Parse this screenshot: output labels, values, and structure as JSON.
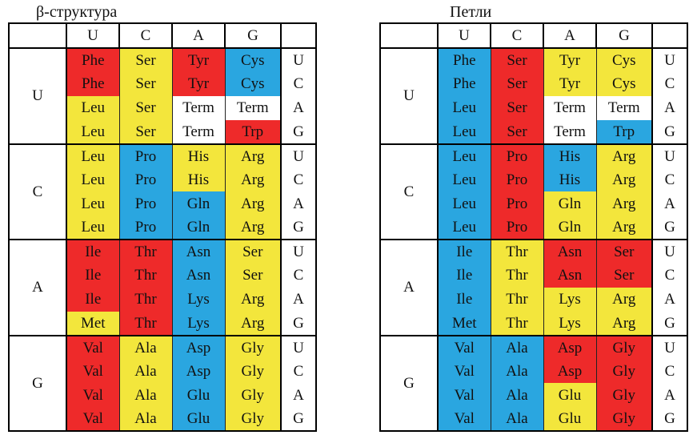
{
  "colors": {
    "R": "#ee2a2a",
    "Y": "#f3e63c",
    "B": "#2aa6e0",
    "W": "#ffffff"
  },
  "header": [
    "U",
    "C",
    "A",
    "G"
  ],
  "third": [
    "U",
    "C",
    "A",
    "G"
  ],
  "panels": [
    {
      "title": "β-структура",
      "groups": [
        {
          "first": "U",
          "rows": [
            [
              [
                "Phe",
                "R"
              ],
              [
                "Ser",
                "Y"
              ],
              [
                "Tyr",
                "R"
              ],
              [
                "Cys",
                "B"
              ]
            ],
            [
              [
                "Phe",
                "R"
              ],
              [
                "Ser",
                "Y"
              ],
              [
                "Tyr",
                "R"
              ],
              [
                "Cys",
                "B"
              ]
            ],
            [
              [
                "Leu",
                "Y"
              ],
              [
                "Ser",
                "Y"
              ],
              [
                "Term",
                "W"
              ],
              [
                "Term",
                "W"
              ]
            ],
            [
              [
                "Leu",
                "Y"
              ],
              [
                "Ser",
                "Y"
              ],
              [
                "Term",
                "W"
              ],
              [
                "Trp",
                "R"
              ]
            ]
          ]
        },
        {
          "first": "C",
          "rows": [
            [
              [
                "Leu",
                "Y"
              ],
              [
                "Pro",
                "B"
              ],
              [
                "His",
                "Y"
              ],
              [
                "Arg",
                "Y"
              ]
            ],
            [
              [
                "Leu",
                "Y"
              ],
              [
                "Pro",
                "B"
              ],
              [
                "His",
                "Y"
              ],
              [
                "Arg",
                "Y"
              ]
            ],
            [
              [
                "Leu",
                "Y"
              ],
              [
                "Pro",
                "B"
              ],
              [
                "Gln",
                "B"
              ],
              [
                "Arg",
                "Y"
              ]
            ],
            [
              [
                "Leu",
                "Y"
              ],
              [
                "Pro",
                "B"
              ],
              [
                "Gln",
                "B"
              ],
              [
                "Arg",
                "Y"
              ]
            ]
          ]
        },
        {
          "first": "A",
          "rows": [
            [
              [
                "Ile",
                "R"
              ],
              [
                "Thr",
                "R"
              ],
              [
                "Asn",
                "B"
              ],
              [
                "Ser",
                "Y"
              ]
            ],
            [
              [
                "Ile",
                "R"
              ],
              [
                "Thr",
                "R"
              ],
              [
                "Asn",
                "B"
              ],
              [
                "Ser",
                "Y"
              ]
            ],
            [
              [
                "Ile",
                "R"
              ],
              [
                "Thr",
                "R"
              ],
              [
                "Lys",
                "B"
              ],
              [
                "Arg",
                "Y"
              ]
            ],
            [
              [
                "Met",
                "Y"
              ],
              [
                "Thr",
                "R"
              ],
              [
                "Lys",
                "B"
              ],
              [
                "Arg",
                "Y"
              ]
            ]
          ]
        },
        {
          "first": "G",
          "rows": [
            [
              [
                "Val",
                "R"
              ],
              [
                "Ala",
                "Y"
              ],
              [
                "Asp",
                "B"
              ],
              [
                "Gly",
                "Y"
              ]
            ],
            [
              [
                "Val",
                "R"
              ],
              [
                "Ala",
                "Y"
              ],
              [
                "Asp",
                "B"
              ],
              [
                "Gly",
                "Y"
              ]
            ],
            [
              [
                "Val",
                "R"
              ],
              [
                "Ala",
                "Y"
              ],
              [
                "Glu",
                "B"
              ],
              [
                "Gly",
                "Y"
              ]
            ],
            [
              [
                "Val",
                "R"
              ],
              [
                "Ala",
                "Y"
              ],
              [
                "Glu",
                "B"
              ],
              [
                "Gly",
                "Y"
              ]
            ]
          ]
        }
      ]
    },
    {
      "title": "Петли",
      "groups": [
        {
          "first": "U",
          "rows": [
            [
              [
                "Phe",
                "B"
              ],
              [
                "Ser",
                "R"
              ],
              [
                "Tyr",
                "Y"
              ],
              [
                "Cys",
                "Y"
              ]
            ],
            [
              [
                "Phe",
                "B"
              ],
              [
                "Ser",
                "R"
              ],
              [
                "Tyr",
                "Y"
              ],
              [
                "Cys",
                "Y"
              ]
            ],
            [
              [
                "Leu",
                "B"
              ],
              [
                "Ser",
                "R"
              ],
              [
                "Term",
                "W"
              ],
              [
                "Term",
                "W"
              ]
            ],
            [
              [
                "Leu",
                "B"
              ],
              [
                "Ser",
                "R"
              ],
              [
                "Term",
                "W"
              ],
              [
                "Trp",
                "B"
              ]
            ]
          ]
        },
        {
          "first": "C",
          "rows": [
            [
              [
                "Leu",
                "B"
              ],
              [
                "Pro",
                "R"
              ],
              [
                "His",
                "B"
              ],
              [
                "Arg",
                "Y"
              ]
            ],
            [
              [
                "Leu",
                "B"
              ],
              [
                "Pro",
                "R"
              ],
              [
                "His",
                "B"
              ],
              [
                "Arg",
                "Y"
              ]
            ],
            [
              [
                "Leu",
                "B"
              ],
              [
                "Pro",
                "R"
              ],
              [
                "Gln",
                "Y"
              ],
              [
                "Arg",
                "Y"
              ]
            ],
            [
              [
                "Leu",
                "B"
              ],
              [
                "Pro",
                "R"
              ],
              [
                "Gln",
                "Y"
              ],
              [
                "Arg",
                "Y"
              ]
            ]
          ]
        },
        {
          "first": "A",
          "rows": [
            [
              [
                "Ile",
                "B"
              ],
              [
                "Thr",
                "Y"
              ],
              [
                "Asn",
                "R"
              ],
              [
                "Ser",
                "R"
              ]
            ],
            [
              [
                "Ile",
                "B"
              ],
              [
                "Thr",
                "Y"
              ],
              [
                "Asn",
                "R"
              ],
              [
                "Ser",
                "R"
              ]
            ],
            [
              [
                "Ile",
                "B"
              ],
              [
                "Thr",
                "Y"
              ],
              [
                "Lys",
                "Y"
              ],
              [
                "Arg",
                "Y"
              ]
            ],
            [
              [
                "Met",
                "B"
              ],
              [
                "Thr",
                "Y"
              ],
              [
                "Lys",
                "Y"
              ],
              [
                "Arg",
                "Y"
              ]
            ]
          ]
        },
        {
          "first": "G",
          "rows": [
            [
              [
                "Val",
                "B"
              ],
              [
                "Ala",
                "B"
              ],
              [
                "Asp",
                "R"
              ],
              [
                "Gly",
                "R"
              ]
            ],
            [
              [
                "Val",
                "B"
              ],
              [
                "Ala",
                "B"
              ],
              [
                "Asp",
                "R"
              ],
              [
                "Gly",
                "R"
              ]
            ],
            [
              [
                "Val",
                "B"
              ],
              [
                "Ala",
                "B"
              ],
              [
                "Glu",
                "Y"
              ],
              [
                "Gly",
                "R"
              ]
            ],
            [
              [
                "Val",
                "B"
              ],
              [
                "Ala",
                "B"
              ],
              [
                "Glu",
                "Y"
              ],
              [
                "Gly",
                "R"
              ]
            ]
          ]
        }
      ]
    }
  ]
}
